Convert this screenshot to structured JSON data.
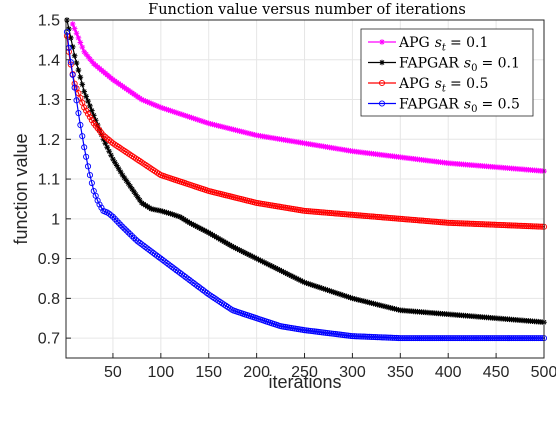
{
  "chart_data": {
    "type": "line",
    "title": "Function value versus number of iterations",
    "xlabel": "iterations",
    "ylabel": "function value",
    "xlim": [
      1,
      500
    ],
    "ylim": [
      0.65,
      1.5
    ],
    "xticks": [
      50,
      100,
      150,
      200,
      250,
      300,
      350,
      400,
      450,
      500
    ],
    "yticks": [
      0.7,
      0.8,
      0.9,
      1,
      1.1,
      1.2,
      1.3,
      1.4,
      1.5
    ],
    "ytick_labels": [
      "0.7",
      "0.8",
      "0.9",
      "1",
      "1.1",
      "1.2",
      "1.3",
      "1.4",
      "1.5"
    ],
    "xtick_labels": [
      "50",
      "100",
      "150",
      "200",
      "250",
      "300",
      "350",
      "400",
      "450",
      "500"
    ],
    "grid": true,
    "legend_position": "top-right",
    "series": [
      {
        "name": "APG s_t = 0.1",
        "legend_prefix": "APG",
        "legend_var": "s",
        "legend_sub": "t",
        "legend_value": "= 0.1",
        "color": "#ff00ff",
        "marker": "asterisk",
        "x": [
          8,
          20,
          30,
          50,
          80,
          100,
          150,
          200,
          250,
          300,
          350,
          400,
          450,
          500
        ],
        "y": [
          1.49,
          1.42,
          1.39,
          1.35,
          1.3,
          1.28,
          1.24,
          1.21,
          1.19,
          1.17,
          1.155,
          1.14,
          1.13,
          1.12
        ]
      },
      {
        "name": "FAPGAR s_0 = 0.1",
        "legend_prefix": "FAPGAR",
        "legend_var": "s",
        "legend_sub": "0",
        "legend_value": "= 0.1",
        "color": "#000000",
        "marker": "asterisk",
        "x": [
          2,
          10,
          20,
          30,
          40,
          50,
          60,
          70,
          80,
          90,
          100,
          110,
          120,
          130,
          150,
          175,
          200,
          250,
          300,
          350,
          400,
          450,
          500
        ],
        "y": [
          1.5,
          1.41,
          1.32,
          1.26,
          1.2,
          1.15,
          1.11,
          1.075,
          1.04,
          1.025,
          1.02,
          1.013,
          1.005,
          0.99,
          0.965,
          0.93,
          0.9,
          0.84,
          0.8,
          0.77,
          0.76,
          0.75,
          0.74
        ]
      },
      {
        "name": "APG s_t = 0.5",
        "legend_prefix": "APG",
        "legend_var": "s",
        "legend_sub": "t",
        "legend_value": "= 0.5",
        "color": "#ff0000",
        "marker": "circle",
        "x": [
          2,
          5,
          10,
          20,
          30,
          40,
          50,
          75,
          100,
          150,
          200,
          250,
          300,
          350,
          400,
          450,
          500
        ],
        "y": [
          1.46,
          1.4,
          1.34,
          1.28,
          1.24,
          1.21,
          1.19,
          1.15,
          1.11,
          1.07,
          1.04,
          1.02,
          1.01,
          1.0,
          0.99,
          0.985,
          0.98
        ]
      },
      {
        "name": "FAPGAR s_0 = 0.5",
        "legend_prefix": "FAPGAR",
        "legend_var": "s",
        "legend_sub": "0",
        "legend_value": "= 0.5",
        "color": "#0000ff",
        "marker": "circle",
        "x": [
          2,
          5,
          10,
          15,
          20,
          25,
          30,
          35,
          40,
          45,
          50,
          60,
          75,
          100,
          125,
          150,
          175,
          200,
          225,
          250,
          300,
          350,
          400,
          450,
          500
        ],
        "y": [
          1.47,
          1.41,
          1.33,
          1.25,
          1.18,
          1.12,
          1.07,
          1.04,
          1.02,
          1.015,
          1.005,
          0.98,
          0.945,
          0.9,
          0.855,
          0.81,
          0.77,
          0.75,
          0.73,
          0.72,
          0.705,
          0.7,
          0.7,
          0.7,
          0.7
        ]
      }
    ]
  }
}
